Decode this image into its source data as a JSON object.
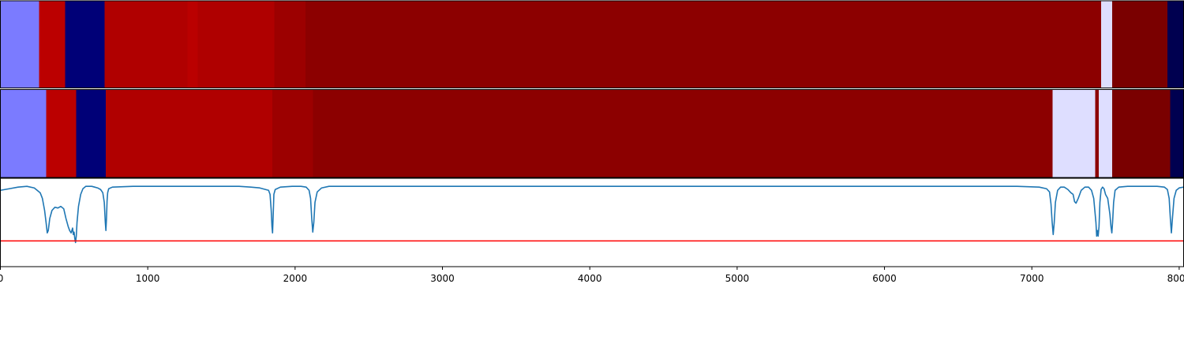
{
  "chart_data": {
    "type": "heatmap",
    "title": "",
    "xlabel": "",
    "ylabel": "",
    "xlim": [
      0,
      8030
    ],
    "xticks": [
      {
        "value": 0,
        "label": "0"
      },
      {
        "value": 1000,
        "label": "1000"
      },
      {
        "value": 2000,
        "label": "2000"
      },
      {
        "value": 3000,
        "label": "3000"
      },
      {
        "value": 4000,
        "label": "4000"
      },
      {
        "value": 5000,
        "label": "5000"
      },
      {
        "value": 6000,
        "label": "6000"
      },
      {
        "value": 7000,
        "label": "7000"
      },
      {
        "value": 8000,
        "label": "8000"
      }
    ],
    "rows": [
      {
        "segments": [
          {
            "start": 0,
            "end": 262,
            "color": "#7b7bff"
          },
          {
            "start": 262,
            "end": 440,
            "color": "#bb0000"
          },
          {
            "start": 440,
            "end": 708,
            "color": "#000077"
          },
          {
            "start": 708,
            "end": 1270,
            "color": "#b00000"
          },
          {
            "start": 1270,
            "end": 1340,
            "color": "#ba0000"
          },
          {
            "start": 1340,
            "end": 1860,
            "color": "#af0000"
          },
          {
            "start": 1860,
            "end": 2070,
            "color": "#9c0000"
          },
          {
            "start": 2070,
            "end": 7470,
            "color": "#8c0000"
          },
          {
            "start": 7470,
            "end": 7545,
            "color": "#dedeff"
          },
          {
            "start": 7545,
            "end": 7920,
            "color": "#7a0000"
          },
          {
            "start": 7920,
            "end": 8030,
            "color": "#000050"
          }
        ]
      },
      {
        "segments": [
          {
            "start": 0,
            "end": 312,
            "color": "#7b7bff"
          },
          {
            "start": 312,
            "end": 514,
            "color": "#bb0000"
          },
          {
            "start": 514,
            "end": 715,
            "color": "#000077"
          },
          {
            "start": 715,
            "end": 1845,
            "color": "#b00000"
          },
          {
            "start": 1845,
            "end": 2120,
            "color": "#9c0000"
          },
          {
            "start": 2120,
            "end": 7140,
            "color": "#8c0000"
          },
          {
            "start": 7140,
            "end": 7430,
            "color": "#dedeff"
          },
          {
            "start": 7430,
            "end": 7455,
            "color": "#8c0000"
          },
          {
            "start": 7455,
            "end": 7545,
            "color": "#dedeff"
          },
          {
            "start": 7545,
            "end": 7940,
            "color": "#7a0000"
          },
          {
            "start": 7940,
            "end": 8030,
            "color": "#000050"
          }
        ]
      }
    ],
    "line_panel": {
      "ylim": [
        0,
        1.1
      ],
      "series": [
        {
          "color": "#1f77b4",
          "x": [
            0,
            60,
            120,
            180,
            230,
            270,
            285,
            300,
            310,
            318,
            325,
            335,
            350,
            370,
            390,
            410,
            430,
            445,
            460,
            470,
            480,
            490,
            495,
            500,
            505,
            510,
            515,
            520,
            530,
            545,
            560,
            580,
            600,
            620,
            640,
            660,
            680,
            695,
            705,
            712,
            716,
            720,
            724,
            728,
            735,
            760,
            900,
            1200,
            1500,
            1620,
            1700,
            1760,
            1800,
            1820,
            1830,
            1838,
            1843,
            1847,
            1851,
            1856,
            1865,
            1900,
            1980,
            2040,
            2075,
            2095,
            2105,
            2113,
            2120,
            2127,
            2135,
            2150,
            2180,
            2230,
            2300,
            4000,
            6000,
            6900,
            7050,
            7100,
            7120,
            7130,
            7138,
            7145,
            7152,
            7160,
            7175,
            7195,
            7220,
            7245,
            7265,
            7280,
            7290,
            7300,
            7315,
            7335,
            7360,
            7385,
            7405,
            7420,
            7435,
            7440,
            7445,
            7450,
            7456,
            7462,
            7470,
            7480,
            7490,
            7500,
            7515,
            7530,
            7537,
            7543,
            7548,
            7555,
            7565,
            7590,
            7650,
            7750,
            7850,
            7900,
            7920,
            7932,
            7940,
            7947,
            7955,
            7965,
            7980,
            8000,
            8030
          ],
          "y": [
            0.95,
            0.97,
            0.99,
            1.0,
            0.98,
            0.92,
            0.85,
            0.7,
            0.55,
            0.42,
            0.45,
            0.6,
            0.7,
            0.74,
            0.73,
            0.75,
            0.72,
            0.6,
            0.5,
            0.45,
            0.42,
            0.48,
            0.4,
            0.43,
            0.35,
            0.3,
            0.38,
            0.55,
            0.75,
            0.9,
            0.97,
            1.0,
            1.0,
            1.0,
            0.99,
            0.98,
            0.96,
            0.92,
            0.8,
            0.55,
            0.45,
            0.6,
            0.82,
            0.92,
            0.97,
            0.99,
            1.0,
            1.0,
            1.0,
            1.0,
            0.99,
            0.98,
            0.96,
            0.95,
            0.9,
            0.7,
            0.5,
            0.42,
            0.62,
            0.9,
            0.96,
            0.99,
            1.0,
            1.0,
            0.99,
            0.95,
            0.85,
            0.6,
            0.43,
            0.55,
            0.8,
            0.93,
            0.98,
            1.0,
            1.0,
            1.0,
            1.0,
            1.0,
            0.99,
            0.97,
            0.93,
            0.78,
            0.55,
            0.4,
            0.55,
            0.8,
            0.95,
            0.99,
            0.99,
            0.96,
            0.92,
            0.9,
            0.81,
            0.79,
            0.85,
            0.95,
            0.99,
            0.99,
            0.95,
            0.85,
            0.55,
            0.38,
            0.45,
            0.38,
            0.5,
            0.8,
            0.96,
            0.99,
            0.97,
            0.9,
            0.85,
            0.65,
            0.5,
            0.42,
            0.55,
            0.8,
            0.95,
            0.99,
            1.0,
            1.0,
            1.0,
            0.99,
            0.96,
            0.85,
            0.6,
            0.42,
            0.62,
            0.85,
            0.95,
            0.98,
            0.99
          ]
        },
        {
          "color": "#ff0000",
          "x": [
            0,
            8030
          ],
          "y": [
            0.32,
            0.32
          ]
        }
      ]
    },
    "grid": false,
    "legend": "none"
  }
}
